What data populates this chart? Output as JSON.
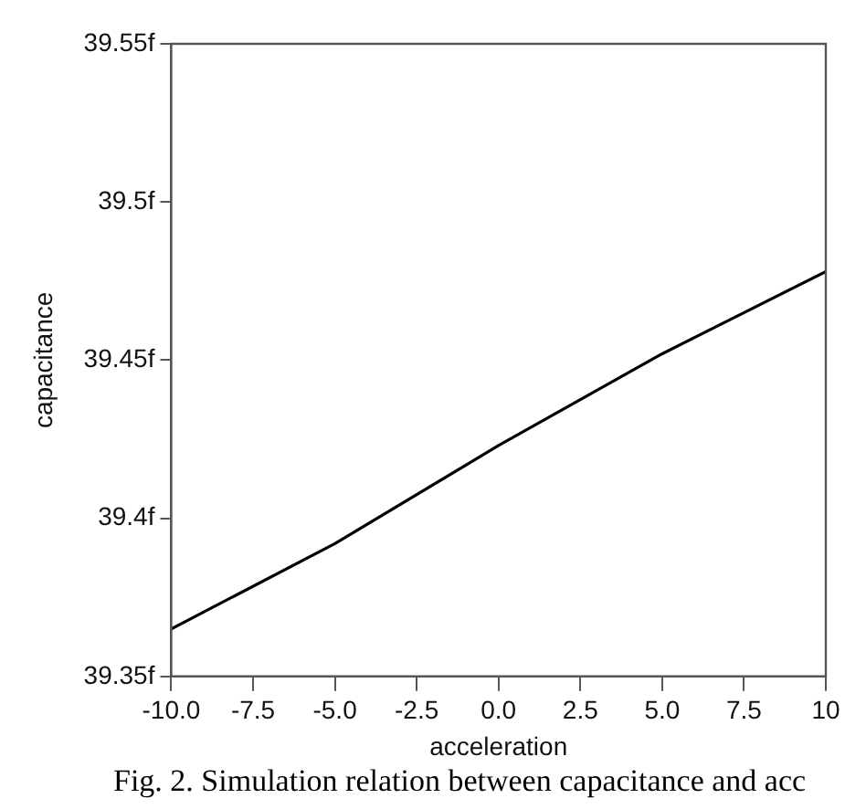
{
  "chart_data": {
    "type": "line",
    "xlabel": "acceleration",
    "ylabel": "capacitance",
    "x": [
      -10,
      -5,
      0,
      5,
      10
    ],
    "series": [
      {
        "color": "#000000",
        "values": [
          39.365,
          39.392,
          39.423,
          39.452,
          39.478
        ]
      }
    ],
    "xlim": [
      -10,
      10
    ],
    "xticks": [
      {
        "value": -10,
        "label": "-10.0"
      },
      {
        "value": -7.5,
        "label": "-7.5"
      },
      {
        "value": -5,
        "label": "-5.0"
      },
      {
        "value": -2.5,
        "label": "-2.5"
      },
      {
        "value": 0,
        "label": "0.0"
      },
      {
        "value": 2.5,
        "label": "2.5"
      },
      {
        "value": 5,
        "label": "5.0"
      },
      {
        "value": 7.5,
        "label": "7.5"
      },
      10
    ],
    "ylim": [
      39.35,
      39.55
    ],
    "yticks": [
      {
        "value": 39.35,
        "label": "39.35f"
      },
      {
        "value": 39.4,
        "label": "39.4f"
      },
      {
        "value": 39.45,
        "label": "39.45f"
      },
      {
        "value": 39.5,
        "label": "39.5f"
      },
      {
        "value": 39.55,
        "label": "39.55f"
      }
    ],
    "grid": false,
    "legend": false,
    "marker": "none",
    "line_style": "solid",
    "annotations": [
      "Fig. 2. Simulation relation between capacitance and acc"
    ]
  }
}
